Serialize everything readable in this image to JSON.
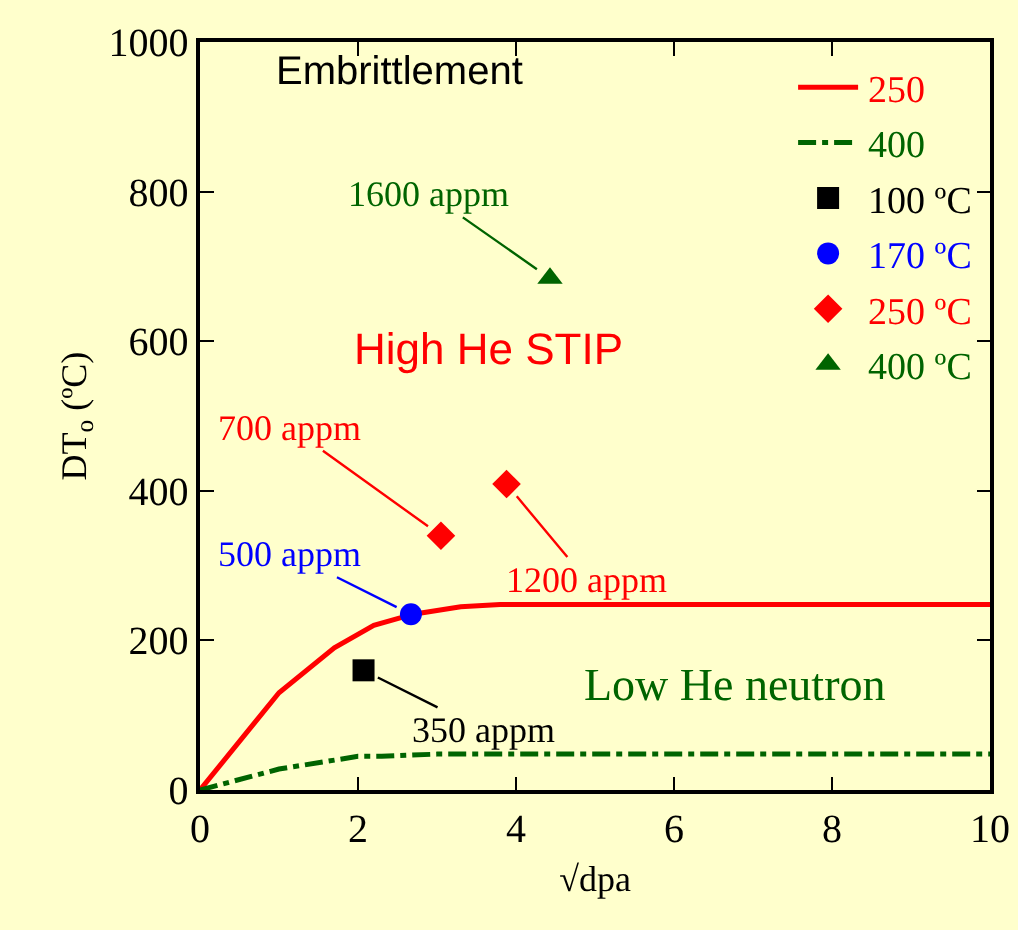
{
  "chart_data": {
    "type": "line",
    "xlabel": "√dpa",
    "ylabel": "DT$_{o}$ (ºC)",
    "xlim": [
      0,
      10
    ],
    "xticks": [
      0,
      2,
      4,
      6,
      8,
      10
    ],
    "ylim": [
      0,
      1000
    ],
    "yticks": [
      0,
      200,
      400,
      600,
      800,
      1000
    ],
    "grid": false,
    "legend": "top right",
    "series": [
      {
        "name": "250",
        "color": "#ff0000",
        "line_style": "solid",
        "marker": "none",
        "x": [
          0,
          1,
          1.7,
          2.2,
          2.7,
          3.3,
          3.8,
          10
        ],
        "values": [
          0,
          130,
          190,
          220,
          235,
          245,
          248,
          248
        ]
      },
      {
        "name": "400",
        "color": "#006400",
        "line_style": "dashdot",
        "marker": "none",
        "x": [
          0,
          1,
          2,
          2.3,
          3,
          10
        ],
        "values": [
          0,
          28,
          45,
          45,
          48,
          48
        ]
      },
      {
        "name": "100 ºC",
        "type": "scatter",
        "color": "#000000",
        "marker": "square",
        "x": [
          2.07
        ],
        "values": [
          160
        ]
      },
      {
        "name": "170 ºC",
        "type": "scatter",
        "color": "#0000ff",
        "marker": "circle",
        "x": [
          2.67
        ],
        "values": [
          235
        ]
      },
      {
        "name": "250 ºC",
        "type": "scatter",
        "color": "#ff0000",
        "marker": "diamond",
        "x": [
          3.05,
          3.88
        ],
        "values": [
          340,
          409
        ]
      },
      {
        "name": "400 ºC",
        "type": "scatter",
        "color": "#006400",
        "marker": "triangle",
        "x": [
          4.43
        ],
        "values": [
          684
        ]
      }
    ],
    "annotations": [
      "Embrittlement",
      "High He STIP",
      "Low He neutron",
      {
        "text": "1600 appm",
        "x": 4.43,
        "y": 684
      },
      {
        "text": "700 appm",
        "x": 3.05,
        "y": 340
      },
      {
        "text": "1200 appm",
        "x": 3.88,
        "y": 409
      },
      {
        "text": "500 appm",
        "x": 2.67,
        "y": 235
      },
      {
        "text": "350 appm",
        "x": 2.07,
        "y": 160
      }
    ]
  }
}
